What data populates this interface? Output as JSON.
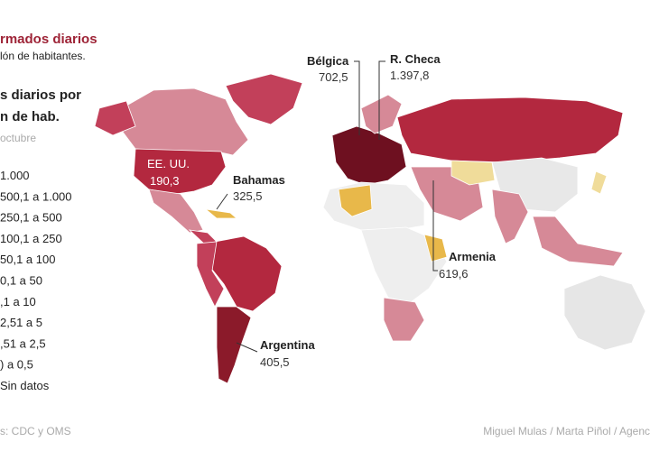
{
  "header": {
    "title": "rmados diarios",
    "subtitle": "lón de habitantes."
  },
  "legend": {
    "title_lines": [
      "s diarios por",
      "n de hab."
    ],
    "date": "octubre",
    "items": [
      "1.000",
      "500,1 a 1.000",
      "250,1 a 500",
      "100,1 a 250",
      "50,1 a 100",
      "0,1 a 50",
      ",1 a 10",
      "2,51 a 5",
      ",51 a 2,5",
      ") a 0,5",
      "Sin datos"
    ]
  },
  "callouts": [
    {
      "name": "Bélgica",
      "value": "702,5"
    },
    {
      "name": "R. Checa",
      "value": "1.397,8"
    },
    {
      "name": "EE. UU.",
      "value": "190,3"
    },
    {
      "name": "Bahamas",
      "value": "325,5"
    },
    {
      "name": "Armenia",
      "value": "619,6"
    },
    {
      "name": "Argentina",
      "value": "405,5"
    }
  ],
  "footer": {
    "source": "s: CDC y OMS",
    "credits": "Miguel Mulas / Marta Piñol / Agenc"
  }
}
